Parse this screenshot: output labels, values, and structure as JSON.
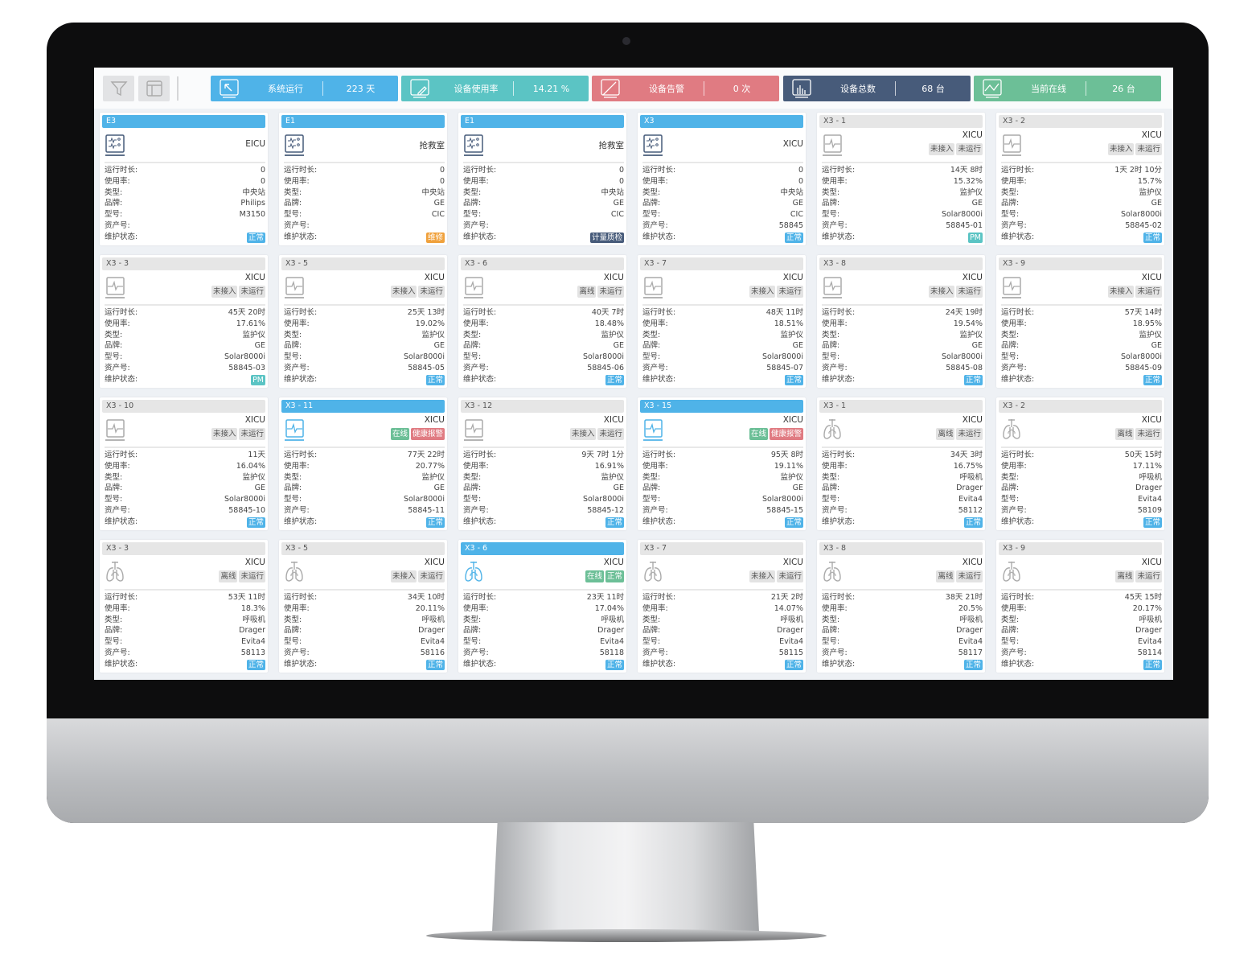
{
  "toolbar": {
    "filter_icon": "filter-icon",
    "layout_icon": "layout-icon"
  },
  "kpis": [
    {
      "label": "系统运行",
      "value": "223 天",
      "color": "#4fb3e8",
      "icon": "cursor-screen-icon"
    },
    {
      "label": "设备使用率",
      "value": "14.21 %",
      "color": "#5bc4c4",
      "icon": "edit-screen-icon"
    },
    {
      "label": "设备告警",
      "value": "0 次",
      "color": "#e07b82",
      "icon": "alert-screen-icon"
    },
    {
      "label": "设备总数",
      "value": "68 台",
      "color": "#475b7a",
      "icon": "bar-chart-screen-icon"
    },
    {
      "label": "当前在线",
      "value": "26 台",
      "color": "#6cbf97",
      "icon": "line-chart-screen-icon"
    }
  ],
  "field_labels": [
    "运行时长:",
    "使用率:",
    "类型:",
    "品牌:",
    "型号:",
    "资产号:",
    "维护状态:"
  ],
  "colors": {
    "active": "#4fb3e8",
    "online": "#6cbf97",
    "alarm": "#e07b82",
    "normal": "#4fb3e8",
    "pm": "#5bc4c4",
    "repair": "#f0a13c",
    "qc": "#475b7a"
  },
  "cards": [
    {
      "title": "E3",
      "active": true,
      "icon": "central-station-icon",
      "dept": "EICU",
      "tags": [],
      "values": [
        "0",
        "0",
        "中央站",
        "Philips",
        "M3150",
        ""
      ],
      "maint": {
        "label": "正常",
        "color": "#4fb3e8"
      }
    },
    {
      "title": "E1",
      "active": true,
      "icon": "central-station-icon",
      "dept": "抢救室",
      "tags": [],
      "values": [
        "0",
        "0",
        "中央站",
        "GE",
        "CIC",
        ""
      ],
      "maint": {
        "label": "维修",
        "color": "#f0a13c"
      }
    },
    {
      "title": "E1",
      "active": true,
      "icon": "central-station-icon",
      "dept": "抢救室",
      "tags": [],
      "values": [
        "0",
        "0",
        "中央站",
        "GE",
        "CIC",
        ""
      ],
      "maint": {
        "label": "计量质检",
        "color": "#475b7a"
      }
    },
    {
      "title": "X3",
      "active": true,
      "icon": "central-station-icon",
      "dept": "XICU",
      "tags": [],
      "values": [
        "0",
        "0",
        "中央站",
        "GE",
        "CIC",
        "58845"
      ],
      "maint": {
        "label": "正常",
        "color": "#4fb3e8"
      }
    },
    {
      "title": "X3 - 1",
      "active": false,
      "icon": "monitor-icon",
      "dept": "XICU",
      "tags": [
        {
          "label": "未接入"
        },
        {
          "label": "未运行"
        }
      ],
      "values": [
        "14天 8时",
        "15.32%",
        "监护仪",
        "GE",
        "Solar8000i",
        "58845-01"
      ],
      "maint": {
        "label": "PM",
        "color": "#5bc4c4"
      }
    },
    {
      "title": "X3 - 2",
      "active": false,
      "icon": "monitor-icon",
      "dept": "XICU",
      "tags": [
        {
          "label": "未接入"
        },
        {
          "label": "未运行"
        }
      ],
      "values": [
        "1天 2时 10分",
        "15.7%",
        "监护仪",
        "GE",
        "Solar8000i",
        "58845-02"
      ],
      "maint": {
        "label": "正常",
        "color": "#4fb3e8"
      }
    },
    {
      "title": "X3 - 3",
      "active": false,
      "icon": "monitor-icon",
      "dept": "XICU",
      "tags": [
        {
          "label": "未接入"
        },
        {
          "label": "未运行"
        }
      ],
      "values": [
        "45天 20时",
        "17.61%",
        "监护仪",
        "GE",
        "Solar8000i",
        "58845-03"
      ],
      "maint": {
        "label": "PM",
        "color": "#5bc4c4"
      }
    },
    {
      "title": "X3 - 5",
      "active": false,
      "icon": "monitor-icon",
      "dept": "XICU",
      "tags": [
        {
          "label": "未接入"
        },
        {
          "label": "未运行"
        }
      ],
      "values": [
        "25天 13时",
        "19.02%",
        "监护仪",
        "GE",
        "Solar8000i",
        "58845-05"
      ],
      "maint": {
        "label": "正常",
        "color": "#4fb3e8"
      }
    },
    {
      "title": "X3 - 6",
      "active": false,
      "icon": "monitor-icon",
      "dept": "XICU",
      "tags": [
        {
          "label": "离线"
        },
        {
          "label": "未运行"
        }
      ],
      "values": [
        "40天 7时",
        "18.48%",
        "监护仪",
        "GE",
        "Solar8000i",
        "58845-06"
      ],
      "maint": {
        "label": "正常",
        "color": "#4fb3e8"
      }
    },
    {
      "title": "X3 - 7",
      "active": false,
      "icon": "monitor-icon",
      "dept": "XICU",
      "tags": [
        {
          "label": "未接入"
        },
        {
          "label": "未运行"
        }
      ],
      "values": [
        "48天 11时",
        "18.51%",
        "监护仪",
        "GE",
        "Solar8000i",
        "58845-07"
      ],
      "maint": {
        "label": "正常",
        "color": "#4fb3e8"
      }
    },
    {
      "title": "X3 - 8",
      "active": false,
      "icon": "monitor-icon",
      "dept": "XICU",
      "tags": [
        {
          "label": "未接入"
        },
        {
          "label": "未运行"
        }
      ],
      "values": [
        "24天 19时",
        "19.54%",
        "监护仪",
        "GE",
        "Solar8000i",
        "58845-08"
      ],
      "maint": {
        "label": "正常",
        "color": "#4fb3e8"
      }
    },
    {
      "title": "X3 - 9",
      "active": false,
      "icon": "monitor-icon",
      "dept": "XICU",
      "tags": [
        {
          "label": "未接入"
        },
        {
          "label": "未运行"
        }
      ],
      "values": [
        "57天 14时",
        "18.95%",
        "监护仪",
        "GE",
        "Solar8000i",
        "58845-09"
      ],
      "maint": {
        "label": "正常",
        "color": "#4fb3e8"
      }
    },
    {
      "title": "X3 - 10",
      "active": false,
      "icon": "monitor-icon",
      "dept": "XICU",
      "tags": [
        {
          "label": "未接入"
        },
        {
          "label": "未运行"
        }
      ],
      "values": [
        "11天",
        "16.04%",
        "监护仪",
        "GE",
        "Solar8000i",
        "58845-10"
      ],
      "maint": {
        "label": "正常",
        "color": "#4fb3e8"
      }
    },
    {
      "title": "X3 - 11",
      "active": true,
      "icon": "monitor-icon",
      "dept": "XICU",
      "tags": [
        {
          "label": "在线",
          "color": "#6cbf97"
        },
        {
          "label": "健康报警",
          "color": "#e07b82"
        }
      ],
      "values": [
        "77天 22时",
        "20.77%",
        "监护仪",
        "GE",
        "Solar8000i",
        "58845-11"
      ],
      "maint": {
        "label": "正常",
        "color": "#4fb3e8"
      }
    },
    {
      "title": "X3 - 12",
      "active": false,
      "icon": "monitor-icon",
      "dept": "XICU",
      "tags": [
        {
          "label": "未接入"
        },
        {
          "label": "未运行"
        }
      ],
      "values": [
        "9天 7时 1分",
        "16.91%",
        "监护仪",
        "GE",
        "Solar8000i",
        "58845-12"
      ],
      "maint": {
        "label": "正常",
        "color": "#4fb3e8"
      }
    },
    {
      "title": "X3 - 15",
      "active": true,
      "icon": "monitor-icon",
      "dept": "XICU",
      "tags": [
        {
          "label": "在线",
          "color": "#6cbf97"
        },
        {
          "label": "健康报警",
          "color": "#e07b82"
        }
      ],
      "values": [
        "95天 8时",
        "19.11%",
        "监护仪",
        "GE",
        "Solar8000i",
        "58845-15"
      ],
      "maint": {
        "label": "正常",
        "color": "#4fb3e8"
      }
    },
    {
      "title": "X3 - 1",
      "active": false,
      "icon": "ventilator-icon",
      "dept": "XICU",
      "tags": [
        {
          "label": "离线"
        },
        {
          "label": "未运行"
        }
      ],
      "values": [
        "34天 3时",
        "16.75%",
        "呼吸机",
        "Drager",
        "Evita4",
        "58112"
      ],
      "maint": {
        "label": "正常",
        "color": "#4fb3e8"
      }
    },
    {
      "title": "X3 - 2",
      "active": false,
      "icon": "ventilator-icon",
      "dept": "XICU",
      "tags": [
        {
          "label": "离线"
        },
        {
          "label": "未运行"
        }
      ],
      "values": [
        "50天 15时",
        "17.11%",
        "呼吸机",
        "Drager",
        "Evita4",
        "58109"
      ],
      "maint": {
        "label": "正常",
        "color": "#4fb3e8"
      }
    },
    {
      "title": "X3 - 3",
      "active": false,
      "icon": "ventilator-icon",
      "dept": "XICU",
      "tags": [
        {
          "label": "离线"
        },
        {
          "label": "未运行"
        }
      ],
      "values": [
        "53天 11时",
        "18.3%",
        "呼吸机",
        "Drager",
        "Evita4",
        "58113"
      ],
      "maint": {
        "label": "正常",
        "color": "#4fb3e8"
      }
    },
    {
      "title": "X3 - 5",
      "active": false,
      "icon": "ventilator-icon",
      "dept": "XICU",
      "tags": [
        {
          "label": "未接入"
        },
        {
          "label": "未运行"
        }
      ],
      "values": [
        "34天 10时",
        "20.11%",
        "呼吸机",
        "Drager",
        "Evita4",
        "58116"
      ],
      "maint": {
        "label": "正常",
        "color": "#4fb3e8"
      }
    },
    {
      "title": "X3 - 6",
      "active": true,
      "icon": "ventilator-icon",
      "dept": "XICU",
      "tags": [
        {
          "label": "在线",
          "color": "#6cbf97"
        },
        {
          "label": "正常",
          "color": "#6cbf97"
        }
      ],
      "values": [
        "23天 11时",
        "17.04%",
        "呼吸机",
        "Drager",
        "Evita4",
        "58118"
      ],
      "maint": {
        "label": "正常",
        "color": "#4fb3e8"
      }
    },
    {
      "title": "X3 - 7",
      "active": false,
      "icon": "ventilator-icon",
      "dept": "XICU",
      "tags": [
        {
          "label": "未接入"
        },
        {
          "label": "未运行"
        }
      ],
      "values": [
        "21天 2时",
        "14.07%",
        "呼吸机",
        "Drager",
        "Evita4",
        "58115"
      ],
      "maint": {
        "label": "正常",
        "color": "#4fb3e8"
      }
    },
    {
      "title": "X3 - 8",
      "active": false,
      "icon": "ventilator-icon",
      "dept": "XICU",
      "tags": [
        {
          "label": "离线"
        },
        {
          "label": "未运行"
        }
      ],
      "values": [
        "38天 21时",
        "20.5%",
        "呼吸机",
        "Drager",
        "Evita4",
        "58117"
      ],
      "maint": {
        "label": "正常",
        "color": "#4fb3e8"
      }
    },
    {
      "title": "X3 - 9",
      "active": false,
      "icon": "ventilator-icon",
      "dept": "XICU",
      "tags": [
        {
          "label": "离线"
        },
        {
          "label": "未运行"
        }
      ],
      "values": [
        "45天 15时",
        "20.17%",
        "呼吸机",
        "Drager",
        "Evita4",
        "58114"
      ],
      "maint": {
        "label": "正常",
        "color": "#4fb3e8"
      }
    }
  ]
}
